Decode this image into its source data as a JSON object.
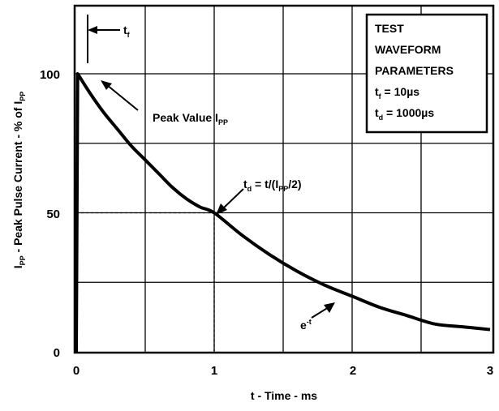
{
  "chart_data": {
    "type": "line",
    "xlabel": "t - Time - ms",
    "ylabel": {
      "main": "I",
      "sub1": "PP",
      "mid": " - Peak Pulse Current - % of I",
      "sub2": "PP"
    },
    "xlim": [
      0,
      3
    ],
    "ylim": [
      0,
      100
    ],
    "x_ticks": [
      "0",
      "1",
      "2",
      "3"
    ],
    "y_ticks": [
      "0",
      "50",
      "100"
    ],
    "grid": true,
    "series": [
      {
        "x": [
          0,
          0.01,
          0.1,
          0.2,
          0.3,
          0.4,
          0.5,
          0.6,
          0.7,
          0.8,
          0.9,
          1.0,
          1.2,
          1.4,
          1.6,
          1.8,
          2.0,
          2.2,
          2.4,
          2.6,
          2.8,
          3.0
        ],
        "y": [
          0,
          100,
          93,
          86,
          80,
          74,
          69,
          64,
          59,
          55,
          52,
          50,
          42,
          35,
          29,
          24,
          20,
          16,
          13,
          10,
          9,
          8
        ]
      }
    ],
    "annotations": {
      "tf_label": {
        "main": "t",
        "sub": "f"
      },
      "peak_label": {
        "main": "Peak Value I",
        "sub": "PP"
      },
      "td_label": {
        "p1": "t",
        "s1": "d",
        "p2": " = t/(I",
        "s2": "PP",
        "p3": "/2)"
      },
      "exp_label": {
        "main": "e",
        "sup": "-t"
      },
      "half_value_x": 1.0,
      "half_value_y": 50
    },
    "legend_box": {
      "line1": "TEST",
      "line2": "WAVEFORM",
      "line3": "PARAMETERS",
      "line4": {
        "main": "t",
        "sub": "f",
        "rest": " = 10µs"
      },
      "line5": {
        "main": "t",
        "sub": "d",
        "rest": " = 1000µs"
      },
      "placement": "top-right"
    }
  }
}
